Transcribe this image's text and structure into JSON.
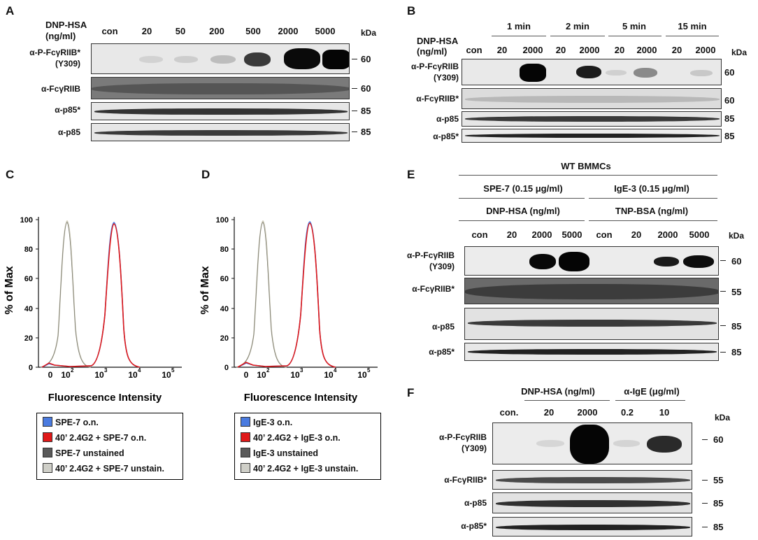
{
  "panels": {
    "A": {
      "label": "A",
      "treatment_header": [
        "DNP-HSA",
        "(ng/ml)"
      ],
      "lanes": [
        "con",
        "20",
        "50",
        "200",
        "500",
        "2000",
        "5000"
      ],
      "kda_header": "kDa",
      "rows": [
        {
          "label1": "α-P-FcγRIIB*",
          "label2": "(Y309)",
          "kda": "60"
        },
        {
          "label1": "α-FcγRIIB",
          "label2": "",
          "kda": "60"
        },
        {
          "label1": "α-p85*",
          "label2": "",
          "kda": "85"
        },
        {
          "label1": "α-p85",
          "label2": "",
          "kda": "85"
        }
      ]
    },
    "B": {
      "label": "B",
      "treatment_header": [
        "DNP-HSA",
        "(ng/ml)"
      ],
      "time_groups": [
        "1 min",
        "2 min",
        "5 min",
        "15 min"
      ],
      "lanes": [
        "con",
        "20",
        "2000",
        "20",
        "2000",
        "20",
        "2000",
        "20",
        "2000"
      ],
      "kda_header": "kDa",
      "rows": [
        {
          "label1": "α-P-FcγRIIB",
          "label2": "(Y309)",
          "kda": "60"
        },
        {
          "label1": "α-FcγRIIB*",
          "label2": "",
          "kda": "60"
        },
        {
          "label1": "α-p85",
          "label2": "",
          "kda": "85"
        },
        {
          "label1": "α-p85*",
          "label2": "",
          "kda": "85"
        }
      ]
    },
    "C": {
      "label": "C",
      "y_label": "% of Max",
      "x_label": "Fluorescence Intensity",
      "y_ticks": [
        "0",
        "20",
        "40",
        "60",
        "80",
        "100"
      ],
      "x_ticks": [
        "0",
        "10",
        "10",
        "10",
        "10"
      ],
      "x_tick_exp": [
        "",
        "2",
        "3",
        "4",
        "5"
      ],
      "legend": [
        {
          "text": "SPE-7 o.n.",
          "color": "#4a7be0"
        },
        {
          "text": "40’ 2.4G2 + SPE-7 o.n.",
          "color": "#e01818"
        },
        {
          "text": "SPE-7 unstained",
          "color": "#5a5a5a"
        },
        {
          "text": "40’ 2.4G2 + SPE-7 unstain.",
          "color": "#cfcfc8"
        }
      ]
    },
    "D": {
      "label": "D",
      "y_label": "% of Max",
      "x_label": "Fluorescence Intensity",
      "y_ticks": [
        "0",
        "20",
        "40",
        "60",
        "80",
        "100"
      ],
      "x_ticks": [
        "0",
        "10",
        "10",
        "10",
        "10"
      ],
      "x_tick_exp": [
        "",
        "2",
        "3",
        "4",
        "5"
      ],
      "legend": [
        {
          "text": "IgE-3 o.n.",
          "color": "#4a7be0"
        },
        {
          "text": "40’ 2.4G2 + IgE-3 o.n.",
          "color": "#e01818"
        },
        {
          "text": "IgE-3 unstained",
          "color": "#5a5a5a"
        },
        {
          "text": "40’ 2.4G2 + IgE-3 unstain.",
          "color": "#cfcfc8"
        }
      ]
    },
    "E": {
      "label": "E",
      "top_header": "WT BMMCs",
      "group1": "SPE-7 (0.15 μg/ml)",
      "group2": "IgE-3 (0.15 μg/ml)",
      "sub1": "DNP-HSA (ng/ml)",
      "sub2": "TNP-BSA (ng/ml)",
      "lanes": [
        "con",
        "20",
        "2000",
        "5000",
        "con",
        "20",
        "2000",
        "5000"
      ],
      "kda_header": "kDa",
      "rows": [
        {
          "label1": "α-P-FcγRIIB",
          "label2": "(Y309)",
          "kda": "60"
        },
        {
          "label1": "α-FcγRIIB*",
          "label2": "",
          "kda": "55"
        },
        {
          "label1": "α-p85",
          "label2": "",
          "kda": "85"
        },
        {
          "label1": "α-p85*",
          "label2": "",
          "kda": "85"
        }
      ]
    },
    "F": {
      "label": "F",
      "group1": "DNP-HSA (ng/ml)",
      "group2": "α-IgE (μg/ml)",
      "lanes": [
        "con.",
        "20",
        "2000",
        "0.2",
        "10"
      ],
      "kda_header": "kDa",
      "rows": [
        {
          "label1": "α-P-FcγRIIB",
          "label2": "(Y309)",
          "kda": "60"
        },
        {
          "label1": "α-FcγRIIB*",
          "label2": "",
          "kda": "55"
        },
        {
          "label1": "α-p85",
          "label2": "",
          "kda": "85"
        },
        {
          "label1": "α-p85*",
          "label2": "",
          "kda": "85"
        }
      ]
    }
  }
}
